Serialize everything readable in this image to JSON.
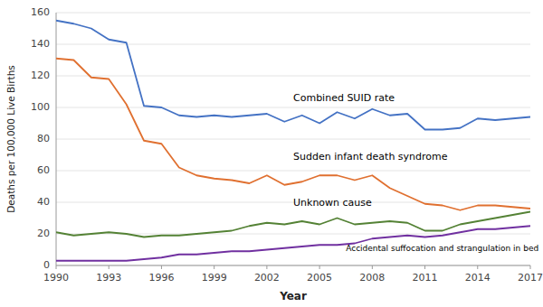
{
  "chart_data": {
    "type": "line",
    "x": [
      1990,
      1991,
      1992,
      1993,
      1994,
      1995,
      1996,
      1997,
      1998,
      1999,
      2000,
      2001,
      2002,
      2003,
      2004,
      2005,
      2006,
      2007,
      2008,
      2009,
      2010,
      2011,
      2012,
      2013,
      2014,
      2015,
      2016,
      2017
    ],
    "series": [
      {
        "color": "#4472c4",
        "values": [
          155,
          153,
          150,
          143,
          141,
          101,
          100,
          95,
          94,
          95,
          94,
          95,
          96,
          91,
          95,
          90,
          97,
          93,
          99,
          95,
          96,
          86,
          86,
          87,
          93,
          92,
          93,
          94
        ]
      },
      {
        "color": "#e07030",
        "values": [
          131,
          130,
          119,
          118,
          102,
          79,
          77,
          62,
          57,
          55,
          54,
          52,
          57,
          51,
          53,
          57,
          57,
          54,
          57,
          49,
          44,
          39,
          38,
          35,
          38,
          38,
          37,
          36
        ]
      },
      {
        "color": "#548235",
        "values": [
          21,
          19,
          20,
          21,
          20,
          18,
          19,
          19,
          20,
          21,
          22,
          25,
          27,
          26,
          28,
          26,
          30,
          26,
          27,
          28,
          27,
          22,
          22,
          26,
          28,
          30,
          32,
          34
        ]
      },
      {
        "color": "#7030a0",
        "values": [
          3,
          3,
          3,
          3,
          3,
          4,
          5,
          7,
          7,
          8,
          9,
          9,
          10,
          11,
          12,
          13,
          13,
          14,
          17,
          18,
          19,
          18,
          19,
          21,
          23,
          23,
          24,
          25
        ]
      }
    ],
    "annotations": [
      {
        "text": "Combined SUID rate",
        "x": 2003.5,
        "y": 104
      },
      {
        "text": "Sudden infant death syndrome",
        "x": 2003.5,
        "y": 67
      },
      {
        "text": "Unknown cause",
        "x": 2003.5,
        "y": 38
      },
      {
        "text": "Accidental suffocation and strangulation in bed",
        "x": 2006.5,
        "y": 9
      }
    ],
    "x_label": "Year",
    "y_label": "Deaths per 100,000 Live Births",
    "xlim": [
      1990,
      2017
    ],
    "ylim": [
      0,
      160
    ],
    "xticks": [
      1990,
      1993,
      1996,
      1999,
      2002,
      2005,
      2008,
      2011,
      2014,
      2017
    ],
    "yticks": [
      0,
      20,
      40,
      60,
      80,
      100,
      120,
      140,
      160
    ],
    "grid": true
  }
}
